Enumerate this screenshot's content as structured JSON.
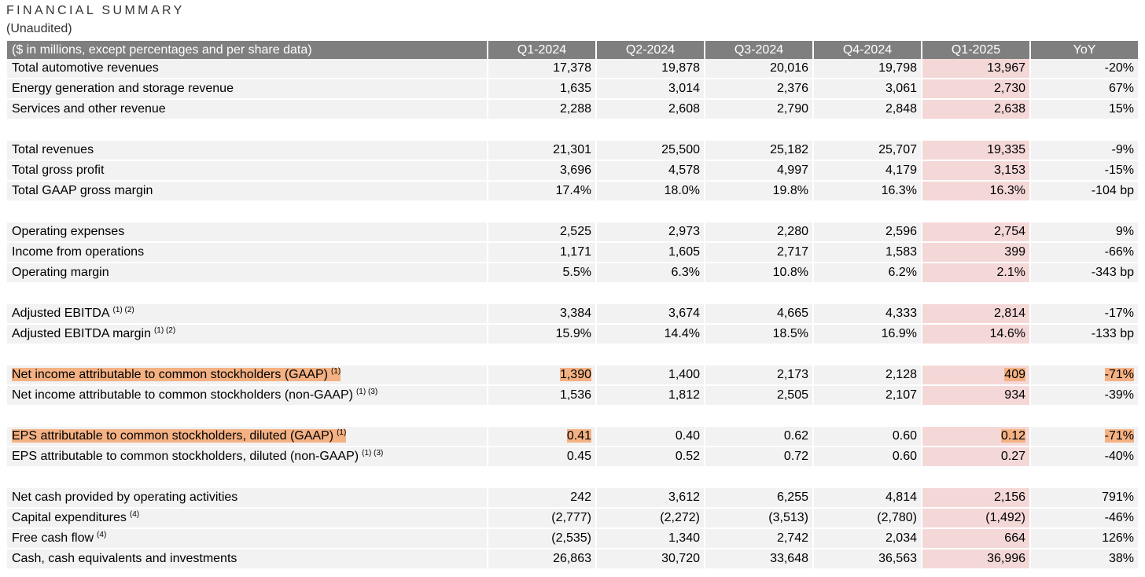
{
  "header": {
    "title": "FINANCIAL SUMMARY",
    "subtitle": "(Unaudited)"
  },
  "colors": {
    "header_bg": "#7f7f7f",
    "row_bg": "#f2f2f2",
    "q1_2025_bg": "#f4d8d7",
    "highlight": "#f4b183"
  },
  "table": {
    "columns": [
      "($ in millions, except percentages and per share data)",
      "Q1-2024",
      "Q2-2024",
      "Q3-2024",
      "Q4-2024",
      "Q1-2025",
      "YoY"
    ],
    "groups": [
      [
        {
          "label": "Total automotive revenues",
          "fn": "",
          "values": [
            "17,378",
            "19,878",
            "20,016",
            "19,798",
            "13,967",
            "-20%"
          ]
        },
        {
          "label": "Energy generation and storage revenue",
          "fn": "",
          "values": [
            "1,635",
            "3,014",
            "2,376",
            "3,061",
            "2,730",
            "67%"
          ]
        },
        {
          "label": "Services and other revenue",
          "fn": "",
          "values": [
            "2,288",
            "2,608",
            "2,790",
            "2,848",
            "2,638",
            "15%"
          ]
        }
      ],
      [
        {
          "label": "Total revenues",
          "fn": "",
          "values": [
            "21,301",
            "25,500",
            "25,182",
            "25,707",
            "19,335",
            "-9%"
          ]
        },
        {
          "label": "Total gross profit",
          "fn": "",
          "values": [
            "3,696",
            "4,578",
            "4,997",
            "4,179",
            "3,153",
            "-15%"
          ]
        },
        {
          "label": "Total GAAP gross margin",
          "fn": "",
          "values": [
            "17.4%",
            "18.0%",
            "19.8%",
            "16.3%",
            "16.3%",
            "-104 bp"
          ]
        }
      ],
      [
        {
          "label": "Operating expenses",
          "fn": "",
          "values": [
            "2,525",
            "2,973",
            "2,280",
            "2,596",
            "2,754",
            "9%"
          ]
        },
        {
          "label": "Income from operations",
          "fn": "",
          "values": [
            "1,171",
            "1,605",
            "2,717",
            "1,583",
            "399",
            "-66%"
          ]
        },
        {
          "label": "Operating margin",
          "fn": "",
          "values": [
            "5.5%",
            "6.3%",
            "10.8%",
            "6.2%",
            "2.1%",
            "-343 bp"
          ]
        }
      ],
      [
        {
          "label": "Adjusted EBITDA",
          "fn": "(1) (2)",
          "values": [
            "3,384",
            "3,674",
            "4,665",
            "4,333",
            "2,814",
            "-17%"
          ]
        },
        {
          "label": "Adjusted EBITDA margin",
          "fn": "(1) (2)",
          "values": [
            "15.9%",
            "14.4%",
            "18.5%",
            "16.9%",
            "14.6%",
            "-133 bp"
          ]
        }
      ],
      [
        {
          "label": "Net income attributable to common stockholders (GAAP)",
          "fn": "(1)",
          "highlight": [
            0,
            1,
            5,
            6
          ],
          "values": [
            "1,390",
            "1,400",
            "2,173",
            "2,128",
            "409",
            "-71%"
          ]
        },
        {
          "label": "Net income attributable to common stockholders (non-GAAP)",
          "fn": "(1) (3)",
          "values": [
            "1,536",
            "1,812",
            "2,505",
            "2,107",
            "934",
            "-39%"
          ]
        }
      ],
      [
        {
          "label": "EPS attributable to common stockholders, diluted (GAAP)",
          "fn": "(1)",
          "highlight": [
            0,
            1,
            5,
            6
          ],
          "values": [
            "0.41",
            "0.40",
            "0.62",
            "0.60",
            "0.12",
            "-71%"
          ]
        },
        {
          "label": "EPS attributable to common stockholders, diluted (non-GAAP)",
          "fn": "(1) (3)",
          "values": [
            "0.45",
            "0.52",
            "0.72",
            "0.60",
            "0.27",
            "-40%"
          ]
        }
      ],
      [
        {
          "label": "Net cash provided by operating activities",
          "fn": "",
          "values": [
            "242",
            "3,612",
            "6,255",
            "4,814",
            "2,156",
            "791%"
          ]
        },
        {
          "label": "Capital expenditures",
          "fn": "(4)",
          "values": [
            "(2,777)",
            "(2,272)",
            "(3,513)",
            "(2,780)",
            "(1,492)",
            "-46%"
          ]
        },
        {
          "label": "Free cash flow",
          "fn": "(4)",
          "values": [
            "(2,535)",
            "1,340",
            "2,742",
            "2,034",
            "664",
            "126%"
          ]
        },
        {
          "label": "Cash, cash equivalents and investments",
          "fn": "",
          "values": [
            "26,863",
            "30,720",
            "33,648",
            "36,563",
            "36,996",
            "38%"
          ]
        }
      ]
    ]
  }
}
